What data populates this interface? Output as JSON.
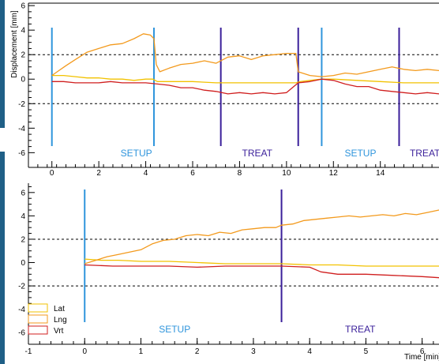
{
  "colors": {
    "lat": "#f2c200",
    "lng": "#f39a1d",
    "vrt": "#d01f1f",
    "setup": "#2f95dc",
    "treat": "#3a1f9a",
    "axis": "#000000",
    "dotted": "#000000"
  },
  "chart_data": [
    {
      "type": "line",
      "ylabel": "Displacement [mm]",
      "xlim": [
        -1.0,
        16.5
      ],
      "ylim": [
        -7.2,
        6.2
      ],
      "x_ticks": [
        0,
        2,
        4,
        6,
        8,
        10,
        12,
        14
      ],
      "y_ticks": [
        -6,
        -4,
        -2,
        0,
        2,
        4,
        6
      ],
      "dotted_y": [
        2,
        -2
      ],
      "markers": [
        {
          "x": 0.0,
          "kind": "setup"
        },
        {
          "x": 4.35,
          "kind": "setup"
        },
        {
          "x": 7.2,
          "kind": "treat"
        },
        {
          "x": 10.5,
          "kind": "treat"
        },
        {
          "x": 11.5,
          "kind": "setup"
        },
        {
          "x": 14.8,
          "kind": "treat"
        }
      ],
      "phase_labels": [
        {
          "text": "SETUP",
          "x": 3.6,
          "kind": "setup"
        },
        {
          "text": "TREAT",
          "x": 8.75,
          "kind": "treat"
        },
        {
          "text": "SETUP",
          "x": 13.15,
          "kind": "setup"
        },
        {
          "text": "TREAT",
          "x": 15.9,
          "kind": "treat"
        }
      ],
      "series": [
        {
          "name": "Lat",
          "color_key": "lat",
          "x": [
            0,
            0.5,
            1,
            1.5,
            2,
            2.5,
            3,
            3.5,
            4,
            4.3,
            4.5,
            5,
            6,
            7,
            8,
            9,
            10,
            10.4,
            10.6,
            11,
            11.5,
            12,
            13,
            14,
            15,
            16.5
          ],
          "y": [
            0.3,
            0.3,
            0.2,
            0.1,
            0.1,
            0.0,
            0.0,
            -0.1,
            0.0,
            0.0,
            -0.2,
            -0.2,
            -0.2,
            -0.3,
            -0.3,
            -0.3,
            -0.3,
            -0.3,
            -0.2,
            -0.1,
            0.0,
            0.0,
            -0.1,
            -0.2,
            -0.3,
            -0.3
          ]
        },
        {
          "name": "Lng",
          "color_key": "lng",
          "x": [
            0,
            0.3,
            0.6,
            1,
            1.5,
            2,
            2.5,
            3,
            3.5,
            3.9,
            4.2,
            4.35,
            4.45,
            4.6,
            5,
            5.5,
            6,
            6.5,
            7,
            7.5,
            8,
            8.5,
            9,
            9.5,
            10,
            10.4,
            10.5,
            11,
            11.5,
            12,
            12.5,
            13,
            13.5,
            14,
            14.5,
            15,
            15.5,
            16,
            16.5
          ],
          "y": [
            0.3,
            0.7,
            1.1,
            1.6,
            2.2,
            2.5,
            2.8,
            2.9,
            3.3,
            3.7,
            3.6,
            3.3,
            1.2,
            0.6,
            0.9,
            1.2,
            1.3,
            1.5,
            1.3,
            1.8,
            1.9,
            1.6,
            1.9,
            2.0,
            2.1,
            2.1,
            0.6,
            0.3,
            0.2,
            0.3,
            0.5,
            0.4,
            0.6,
            0.8,
            1.0,
            0.8,
            0.7,
            0.8,
            0.7
          ]
        },
        {
          "name": "Vrt",
          "color_key": "vrt",
          "x": [
            0,
            0.5,
            1,
            1.5,
            2,
            2.5,
            3,
            3.5,
            4,
            4.5,
            5,
            5.5,
            6,
            6.5,
            7,
            7.5,
            8,
            8.5,
            9,
            9.5,
            10,
            10.5,
            11,
            11.5,
            12,
            12.5,
            13,
            13.5,
            14,
            14.5,
            15,
            15.5,
            16,
            16.5
          ],
          "y": [
            -0.2,
            -0.2,
            -0.3,
            -0.3,
            -0.3,
            -0.2,
            -0.3,
            -0.3,
            -0.3,
            -0.4,
            -0.5,
            -0.7,
            -0.7,
            -0.9,
            -1.0,
            -1.2,
            -1.1,
            -1.2,
            -1.1,
            -1.2,
            -1.1,
            -0.3,
            -0.2,
            0.0,
            -0.1,
            -0.4,
            -0.6,
            -0.6,
            -0.9,
            -1.0,
            -1.1,
            -1.2,
            -1.1,
            -1.2
          ]
        }
      ]
    },
    {
      "type": "line",
      "xlabel": "Time [min]",
      "xlim": [
        -1.0,
        6.3
      ],
      "ylim": [
        -7.0,
        6.8
      ],
      "x_ticks": [
        -1,
        0,
        1,
        2,
        3,
        4,
        5,
        6
      ],
      "y_ticks": [
        -6,
        -4,
        -2,
        0,
        2,
        4,
        6
      ],
      "dotted_y": [
        2,
        -2
      ],
      "markers": [
        {
          "x": 0.0,
          "kind": "setup"
        },
        {
          "x": 3.5,
          "kind": "treat"
        }
      ],
      "phase_labels": [
        {
          "text": "SETUP",
          "x": 1.6,
          "kind": "setup"
        },
        {
          "text": "TREAT",
          "x": 4.9,
          "kind": "treat"
        }
      ],
      "legend": {
        "position": "bottom-left",
        "entries": [
          {
            "label": "Lat",
            "color_key": "lat"
          },
          {
            "label": "Lng",
            "color_key": "lng"
          },
          {
            "label": "Vrt",
            "color_key": "vrt"
          }
        ]
      },
      "series": [
        {
          "name": "Lat",
          "color_key": "lat",
          "x": [
            0,
            0.3,
            0.6,
            1,
            1.5,
            2,
            2.5,
            3,
            3.5,
            4,
            4.5,
            5,
            5.5,
            6,
            6.3
          ],
          "y": [
            0.3,
            0.2,
            0.2,
            0.1,
            0.1,
            0.0,
            -0.1,
            -0.1,
            -0.1,
            -0.2,
            -0.2,
            -0.3,
            -0.3,
            -0.3,
            -0.3
          ]
        },
        {
          "name": "Lng",
          "color_key": "lng",
          "x": [
            0,
            0.2,
            0.4,
            0.6,
            0.8,
            1,
            1.2,
            1.4,
            1.6,
            1.8,
            2,
            2.2,
            2.4,
            2.6,
            2.8,
            3,
            3.2,
            3.4,
            3.5,
            3.7,
            3.9,
            4.1,
            4.3,
            4.5,
            4.7,
            4.9,
            5.1,
            5.3,
            5.5,
            5.7,
            5.9,
            6.1,
            6.3
          ],
          "y": [
            -0.1,
            0.2,
            0.5,
            0.7,
            0.9,
            1.1,
            1.6,
            1.9,
            2.0,
            2.3,
            2.4,
            2.3,
            2.6,
            2.5,
            2.8,
            2.9,
            3.0,
            3.0,
            3.2,
            3.3,
            3.6,
            3.7,
            3.8,
            3.9,
            4.0,
            3.9,
            4.0,
            4.1,
            4.0,
            4.2,
            4.1,
            4.3,
            4.5
          ]
        },
        {
          "name": "Vrt",
          "color_key": "vrt",
          "x": [
            0,
            0.5,
            1,
            1.5,
            2,
            2.5,
            3,
            3.5,
            4,
            4.2,
            4.5,
            5,
            5.5,
            6,
            6.3
          ],
          "y": [
            -0.2,
            -0.3,
            -0.3,
            -0.3,
            -0.4,
            -0.3,
            -0.3,
            -0.3,
            -0.4,
            -0.8,
            -1.0,
            -1.0,
            -1.1,
            -1.2,
            -1.3
          ]
        }
      ]
    }
  ]
}
